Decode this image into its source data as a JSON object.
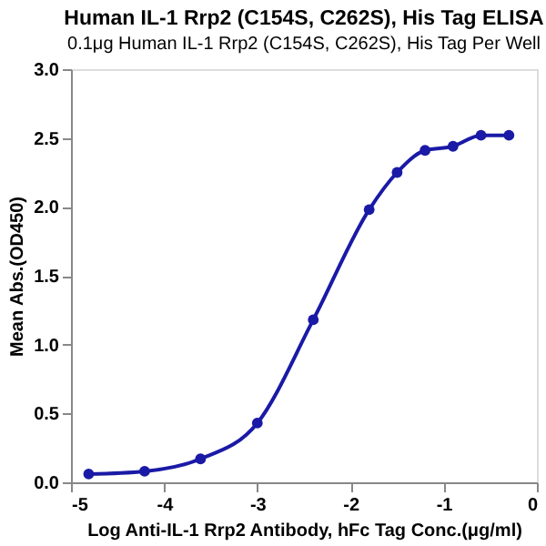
{
  "chart_data": {
    "type": "line",
    "title": "Human IL-1 Rrp2 (C154S, C262S), His Tag ELISA",
    "subtitle": "0.1μg Human IL-1 Rrp2 (C154S, C262S), His Tag Per Well",
    "xlabel": "Log Anti-IL-1 Rrp2 Antibody, hFc Tag Conc.(μg/ml)",
    "ylabel": "Mean Abs.(OD450)",
    "x": [
      -4.81,
      -4.21,
      -3.61,
      -3.0,
      -2.4,
      -1.8,
      -1.5,
      -1.2,
      -0.9,
      -0.6,
      -0.3
    ],
    "series": [
      {
        "color": "#1a1aa6",
        "values": [
          0.06,
          0.08,
          0.17,
          0.43,
          1.18,
          1.98,
          2.25,
          2.41,
          2.44,
          2.52,
          2.52
        ]
      }
    ],
    "xlim": [
      -5,
      0
    ],
    "xticks": [
      -5,
      -4,
      -3,
      -2,
      -1,
      0
    ],
    "ylim": [
      0,
      3
    ],
    "yticks": [
      {
        "value": 0,
        "label": "0.0"
      },
      0.5,
      {
        "value": 1,
        "label": "1.0"
      },
      1.5,
      {
        "value": 2,
        "label": "2.0"
      },
      2.5,
      {
        "value": 3,
        "label": "3.0"
      }
    ],
    "grid": false,
    "marker": "circle",
    "line_style": "solid"
  }
}
